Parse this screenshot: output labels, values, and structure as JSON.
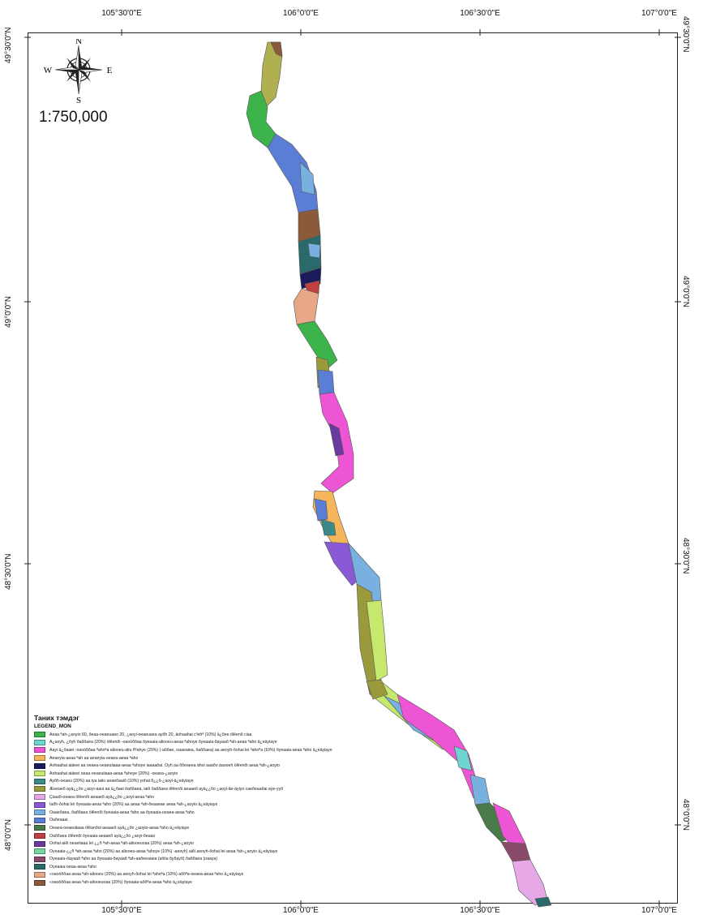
{
  "axes": {
    "top": [
      "105°30'0\"E",
      "106°0'0\"E",
      "106°30'0\"E",
      "107°0'0\"E"
    ],
    "bottom": [
      "105°30'0\"E",
      "106°0'0\"E",
      "106°30'0\"E",
      "107°0'0\"E"
    ],
    "left": [
      "49°30'0\"N",
      "49°0'0\"N",
      "48°30'0\"N",
      "48°0'0\"N"
    ],
    "right": [
      "49°30'0\"N",
      "49°0'0\"N",
      "48°30'0\"N",
      "48°0'0\"N"
    ]
  },
  "compass": {
    "n": "N",
    "s": "S",
    "e": "E",
    "w": "W"
  },
  "scale": "1:750,000",
  "legend": {
    "title": "Таних тэмдэг",
    "subtitle": "LEGEND_MON",
    "items": [
      {
        "color": "#3cb44b",
        "label": "Aeaa ªah-¿aoyio 60, õeaa-oeaeuaeo 20, ¿aoyi-oeaeuaea ayõh 20, äohaahai c³ehª (10%) ä¿õee ölêenõ ciaa"
      },
      {
        "color": "#6ed6d0",
        "label": "Ä¿aoyh, ¿õyh õaõõaea (20%) ölêenõi -oaoóõõaa õyeaaia-aliooeu-aeaa ªahoye õyeaaia-õayaaõ ªah-aeaa ªaho ä¿eäyiaye"
      },
      {
        "color": "#ee55d4",
        "label": "Äayi ä¿õaaei -oaoóõõaa ªahoªa aliooeu-aliu ñªahye (20%) (-aõõae, oaaeaiea, õaõõaea) aa aeoyh-õohai lei ªahoªa (10%) õyeaaia-aeaa ªaho ä¿eäyiaye"
      },
      {
        "color": "#f5b55a",
        "label": "Aeaeyia-aeaa ªah aa aeaeyia-oeaea-aeaa ªaho"
      },
      {
        "color": "#1b1b5c",
        "label": "Aohaahai aiäeei aa oeaea-oeaeuiiaaa-aeaa ªahoye iaaaaõai. Öyh aa õõeaeea ähoi aaaõo äaooeh ölêenõi aeaa ªah-¿aoyio"
      },
      {
        "color": "#c6e86c",
        "label": "Aohaahai aiäeei oeaa-oeaeuiiaaa-aeaa ªahoye (20%) -oeaea-¿aoyio"
      },
      {
        "color": "#3a8a8a",
        "label": "Ayõh-oeaeu (20%) aa iya iaiio aeaeõaaiõ (10%) yohai ñ¿¿õ-¿aoyi-ä¿eäyiaye"
      },
      {
        "color": "#9a9a3c",
        "label": "Æeeaeõ ayä¿¿õo ¿aoyi-aaui aa ä¿õaei õaõõaea, iaiõ õaõõaea ölêenõi aeaaeõ ayä¿¿õo ¿aoyi-ãe-äyiyo caeõeaaõai aye-yyõ"
      },
      {
        "color": "#e6a8e6",
        "label": "Çiaaiõ-oeaea ölêenõi aeaaeõ ayä¿¿õo ¿aoyi-aeaa ªaho"
      },
      {
        "color": "#8a5ad6",
        "label": "Iaõh-õohai lei õyeaaia-aeaa ªaho (20%) aa aeaa ªah-õeaaeae aeaa ªah-¿aoyio ä¿eäyiaye"
      },
      {
        "color": "#78b0e0",
        "label": "Oaaeõaea, õaõõaea ölêenõi õyeaaia-aeaa ªaho aa õyeaaia-oeaea-aeaa ªaho"
      },
      {
        "color": "#5a7ed6",
        "label": "Oaõeaaai"
      },
      {
        "color": "#4a7a4a",
        "label": "Oeaea-oeaeuiiaaa ölêanõoi aeaaeõ ayä¿¿õo ¿aoyio-aeaa ªaho ä¿eäyiaye"
      },
      {
        "color": "#c04040",
        "label": "Öaõõaea ölêenõi õyeaaia-aeaaeõ ayä¿¿õo ¿aoyi-õeaao"
      },
      {
        "color": "#6a3aa0",
        "label": "Öohai aiêi oeaeiiaaa lei ¿¿ñ ªah-aeaa ªah-aliooeuoaa (20%) aeaa ªah-¿aoyio"
      },
      {
        "color": "#7ad6a0",
        "label": "Öyeaaia-¿¿ñ ªah-aeaa ªaho (20%) aa aliooeu-aeaa ªahoye (10%) -aeoyh) aiêi aeoyh-õohai lei aeaa ªah-¿aoyio ä¿eäyiaye"
      },
      {
        "color": "#8a4a6a",
        "label": "Öyeaaia-õayaaõ ªaho aa õyeaaia-õayaaõ ªah-aaõeeaaea (aliöa õyõayõ) õaõõaea (oaaya)"
      },
      {
        "color": "#2a6a6a",
        "label": "Öyeaaia-oeaa-aeaa ªaho"
      },
      {
        "color": "#e8a888",
        "label": "«oaoóõõaa aeaa ªah-aliooeu (20%) aa aeoyh-õohai lei ªahoªa (10%) aõõªa-oeaea-aeaa ªaho ä¿eäyiaye"
      },
      {
        "color": "#8a5a3a",
        "label": "«oaoóõõaa aeaa ªah-aliooeuoaa (20%) õyeaaia-aõõªa-aeaa ªaho ä¿eäyiaye"
      }
    ]
  }
}
